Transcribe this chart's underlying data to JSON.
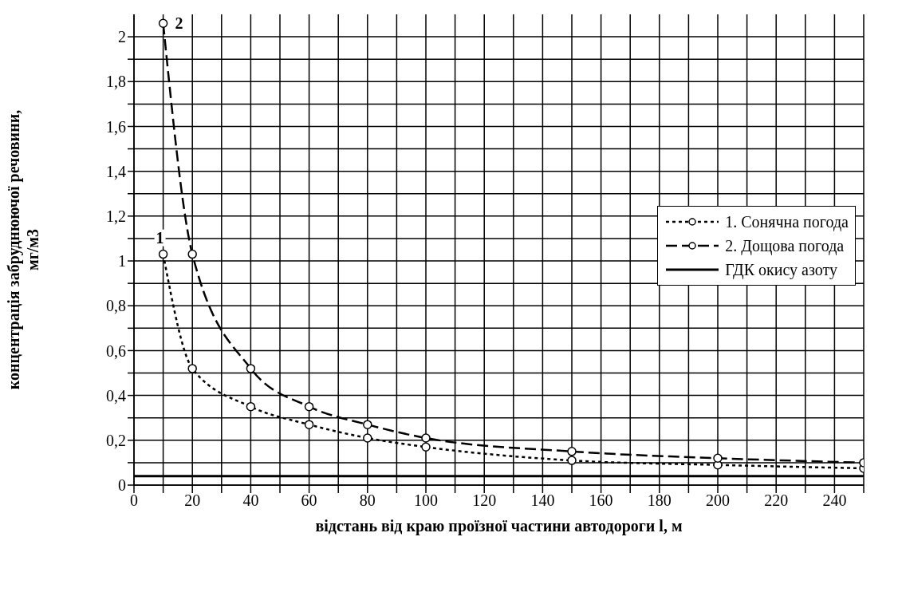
{
  "chart_data": {
    "type": "line",
    "xlabel": "відстань від краю проїзної частини автодороги l, м",
    "ylabel": "концентрація забруднюючої речовини, мг/м3",
    "x": [
      10,
      20,
      40,
      60,
      80,
      100,
      150,
      200,
      250
    ],
    "series": [
      {
        "name": "1. Сонячна погода",
        "color": "#000000",
        "line_style": "dotted",
        "values": [
          1.03,
          0.52,
          0.35,
          0.27,
          0.21,
          0.17,
          0.11,
          0.09,
          0.075
        ]
      },
      {
        "name": "2. Дощова погода",
        "color": "#000000",
        "line_style": "dashed",
        "values": [
          2.06,
          1.03,
          0.52,
          0.35,
          0.27,
          0.21,
          0.15,
          0.12,
          0.1
        ]
      }
    ],
    "ref_lines": [
      {
        "axis": "y",
        "value": 0.04,
        "label": "ГДК окису азоту",
        "color": "#000000",
        "line_style": "solid"
      }
    ],
    "annotations": [
      {
        "text": "1",
        "x": 10,
        "y": 1.03
      },
      {
        "text": "2",
        "x": 10,
        "y": 2.06
      }
    ],
    "xlim": [
      0,
      250
    ],
    "xticks": [
      0,
      {
        "value": 10,
        "label": null
      },
      20,
      {
        "value": 30,
        "label": null
      },
      40,
      {
        "value": 50,
        "label": null
      },
      60,
      {
        "value": 70,
        "label": null
      },
      80,
      {
        "value": 90,
        "label": null
      },
      100,
      {
        "value": 110,
        "label": null
      },
      120,
      {
        "value": 130,
        "label": null
      },
      140,
      {
        "value": 150,
        "label": null
      },
      160,
      {
        "value": 170,
        "label": null
      },
      180,
      {
        "value": 190,
        "label": null
      },
      200,
      {
        "value": 210,
        "label": null
      },
      220,
      {
        "value": 230,
        "label": null
      },
      240,
      {
        "value": 250,
        "label": null
      }
    ],
    "ylim": [
      0,
      2.1
    ],
    "yticks": [
      {
        "value": 0,
        "label": "0"
      },
      {
        "value": 0.1,
        "label": null
      },
      {
        "value": 0.2,
        "label": "0,2"
      },
      {
        "value": 0.3,
        "label": null
      },
      {
        "value": 0.4,
        "label": "0,4"
      },
      {
        "value": 0.5,
        "label": null
      },
      {
        "value": 0.6,
        "label": "0,6"
      },
      {
        "value": 0.7,
        "label": null
      },
      {
        "value": 0.8,
        "label": "0,8"
      },
      {
        "value": 0.9,
        "label": null
      },
      {
        "value": 1,
        "label": "1"
      },
      {
        "value": 1.1,
        "label": null
      },
      {
        "value": 1.2,
        "label": "1,2"
      },
      {
        "value": 1.3,
        "label": null
      },
      {
        "value": 1.4,
        "label": "1,4"
      },
      {
        "value": 1.5,
        "label": null
      },
      {
        "value": 1.6,
        "label": "1,6"
      },
      {
        "value": 1.7,
        "label": null
      },
      {
        "value": 1.8,
        "label": "1,8"
      },
      {
        "value": 1.9,
        "label": null
      },
      {
        "value": 2,
        "label": "2"
      }
    ],
    "grid": true,
    "legend": "right",
    "marker": "circle"
  }
}
